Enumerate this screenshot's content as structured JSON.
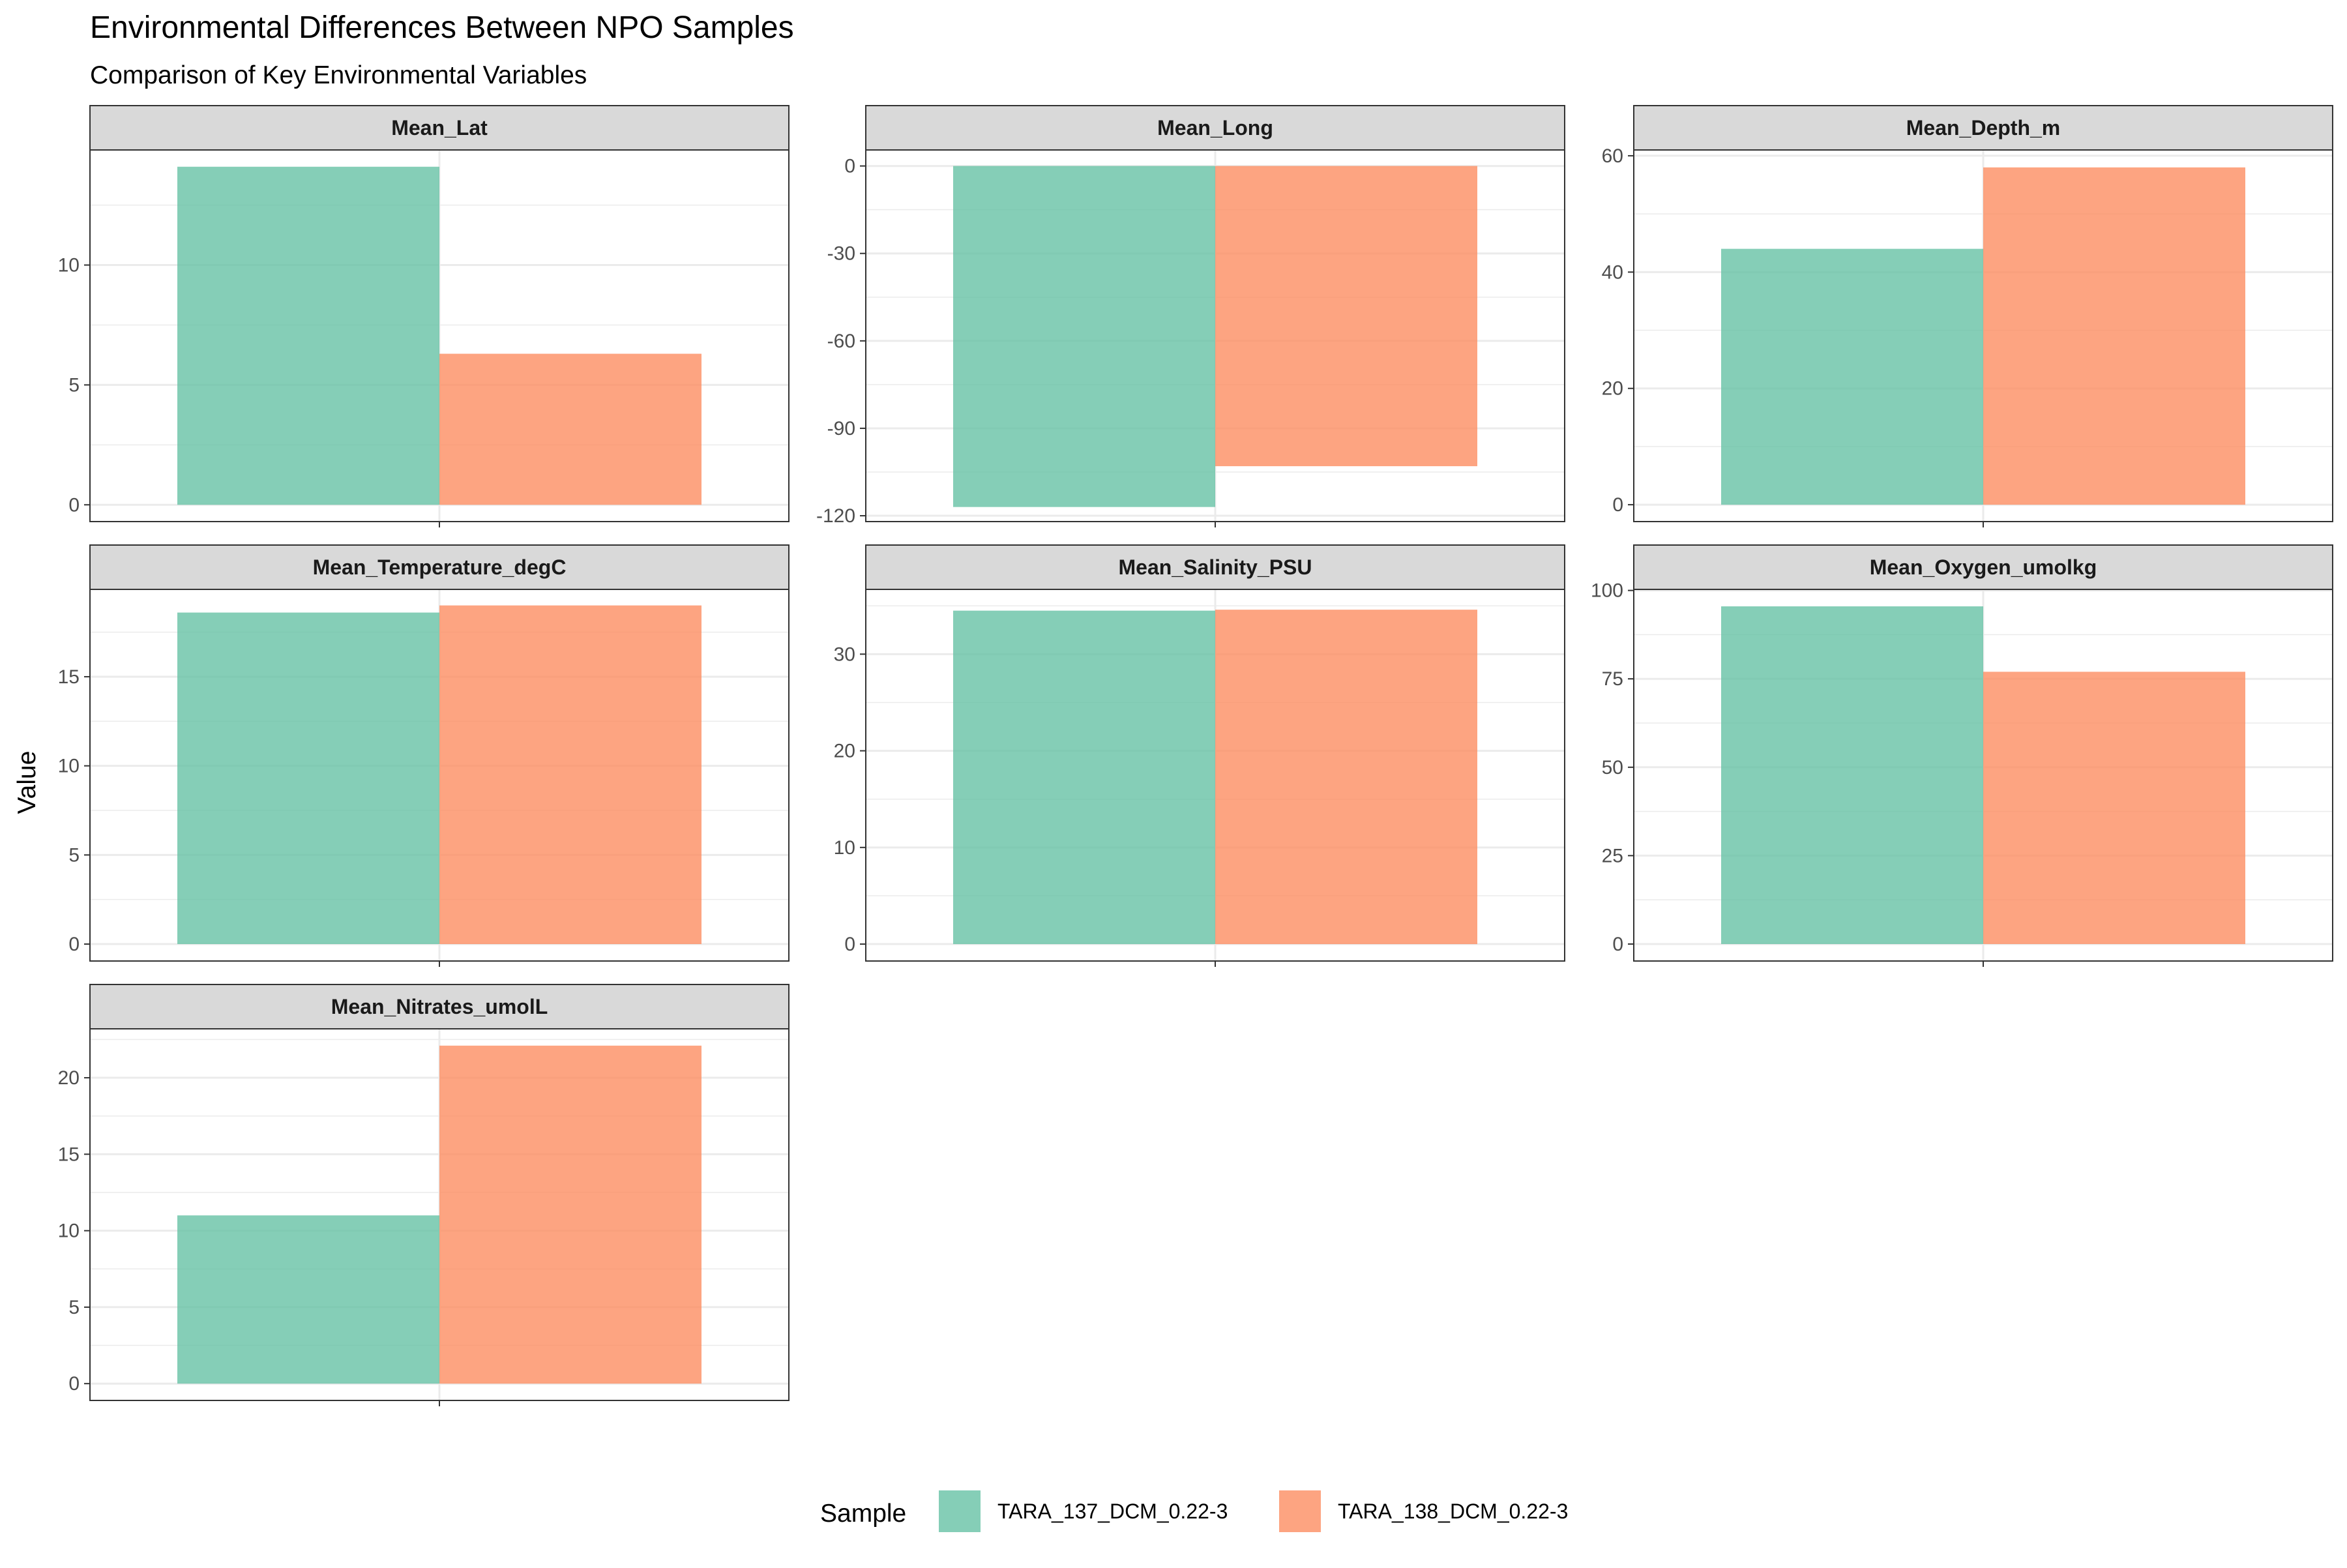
{
  "chart_data": {
    "type": "bar",
    "title": "Environmental Differences Between NPO Samples",
    "subtitle": "Comparison of Key Environmental Variables",
    "xlabel": "",
    "ylabel": "Value",
    "legend": {
      "title": "Sample",
      "position": "bottom",
      "entries": [
        "TARA_137_DCM_0.22-3",
        "TARA_138_DCM_0.22-3"
      ]
    },
    "colors": {
      "TARA_137_DCM_0.22-3": "#66c2a5",
      "TARA_138_DCM_0.22-3": "#fc8d62"
    },
    "grid": true,
    "facets": [
      {
        "name": "Mean_Lat",
        "ylim": [
          -0.7,
          14.8
        ],
        "ticks": [
          0,
          5,
          10
        ],
        "values": [
          14.1,
          6.3
        ]
      },
      {
        "name": "Mean_Long",
        "ylim": [
          -122,
          5.5
        ],
        "ticks": [
          -120,
          -90,
          -60,
          -30,
          0
        ],
        "values": [
          -117,
          -103
        ]
      },
      {
        "name": "Mean_Depth_m",
        "ylim": [
          -2.9,
          61
        ],
        "ticks": [
          0,
          20,
          40,
          60
        ],
        "values": [
          44,
          58
        ]
      },
      {
        "name": "Mean_Temperature_degC",
        "ylim": [
          -0.95,
          19.9
        ],
        "ticks": [
          0,
          5,
          10,
          15
        ],
        "values": [
          18.6,
          19.0
        ]
      },
      {
        "name": "Mean_Salinity_PSU",
        "ylim": [
          -1.75,
          36.7
        ],
        "ticks": [
          0,
          10,
          20,
          30
        ],
        "values": [
          34.5,
          34.6
        ]
      },
      {
        "name": "Mean_Oxygen_umolkg",
        "ylim": [
          -4.8,
          100.3
        ],
        "ticks": [
          0,
          25,
          50,
          75,
          100
        ],
        "values": [
          95.5,
          77
        ]
      },
      {
        "name": "Mean_Nitrates_umolL",
        "ylim": [
          -1.1,
          23.2
        ],
        "ticks": [
          0,
          5,
          10,
          15,
          20
        ],
        "values": [
          11,
          22.1
        ]
      }
    ]
  }
}
